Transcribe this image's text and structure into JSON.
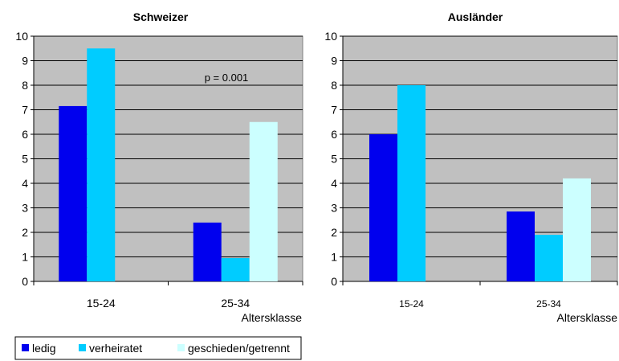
{
  "chart_data": [
    {
      "type": "bar",
      "title": "Schweizer",
      "xlabel": "Altersklasse",
      "ylabel": "",
      "ylim": [
        0,
        10
      ],
      "yticks": [
        "0",
        "1",
        "2",
        "3",
        "4",
        "5",
        "6",
        "7",
        "8",
        "9",
        "10"
      ],
      "categories": [
        "15-24",
        "25-34"
      ],
      "series": [
        {
          "name": "ledig",
          "values": [
            7.15,
            2.4
          ]
        },
        {
          "name": "verheiratet",
          "values": [
            9.5,
            0.95
          ]
        },
        {
          "name": "geschieden/getrennt",
          "values": [
            0,
            6.5
          ]
        }
      ],
      "annotation": "p = 0.001",
      "grid": true
    },
    {
      "type": "bar",
      "title": "Ausländer",
      "xlabel": "Altersklasse",
      "ylabel": "",
      "ylim": [
        0,
        10
      ],
      "yticks": [
        "0",
        "1",
        "2",
        "3",
        "4",
        "5",
        "6",
        "7",
        "8",
        "9",
        "10"
      ],
      "categories": [
        "15-24",
        "25-34"
      ],
      "series": [
        {
          "name": "ledig",
          "values": [
            6.0,
            2.85
          ]
        },
        {
          "name": "verheiratet",
          "values": [
            8.0,
            1.9
          ]
        },
        {
          "name": "geschieden/getrennt",
          "values": [
            0,
            4.2
          ]
        }
      ],
      "grid": true
    }
  ],
  "legend": {
    "placement": "bottom-left",
    "items": [
      "ledig",
      "verheiratet",
      "geschieden/getrennt"
    ]
  },
  "colors": {
    "ledig": "#0000ee",
    "verheiratet": "#00ccff",
    "geschieden/getrennt": "#ccffff",
    "plot_bg": "#c0c0c0",
    "grid": "#000000"
  }
}
